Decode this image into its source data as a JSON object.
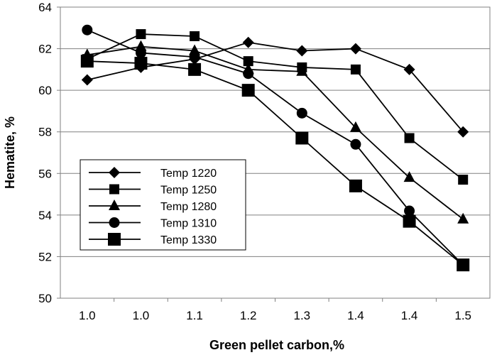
{
  "chart_data": {
    "type": "line",
    "title": "",
    "xlabel": "Green pellet carbon,%",
    "ylabel": "Hematite, %",
    "categories": [
      "1.0",
      "1.0",
      "1.1",
      "1.2",
      "1.3",
      "1.4",
      "1.4",
      "1.5"
    ],
    "ylim": [
      50,
      64
    ],
    "yticks": [
      50,
      52,
      54,
      56,
      58,
      60,
      62,
      64
    ],
    "grid": true,
    "legend_position": "center-left",
    "series": [
      {
        "name": "Temp 1220",
        "marker": "diamond",
        "values": [
          60.5,
          61.1,
          61.5,
          62.3,
          61.9,
          62.0,
          61.0,
          58.0
        ]
      },
      {
        "name": "Temp 1250",
        "marker": "square-small",
        "values": [
          61.5,
          62.7,
          62.6,
          61.4,
          61.1,
          61.0,
          57.7,
          55.7
        ]
      },
      {
        "name": "Temp 1280",
        "marker": "triangle",
        "values": [
          61.7,
          62.1,
          61.9,
          61.0,
          60.9,
          58.2,
          55.8,
          53.8
        ]
      },
      {
        "name": "Temp 1310",
        "marker": "circle",
        "values": [
          62.9,
          61.8,
          61.6,
          60.8,
          58.9,
          57.4,
          54.2,
          51.6
        ]
      },
      {
        "name": "Temp 1330",
        "marker": "square-large",
        "values": [
          61.4,
          61.3,
          61.0,
          60.0,
          57.7,
          55.4,
          53.7,
          51.6
        ]
      }
    ],
    "colors": {
      "line": "#000000",
      "grid": "#808080",
      "frame": "#808080"
    }
  }
}
